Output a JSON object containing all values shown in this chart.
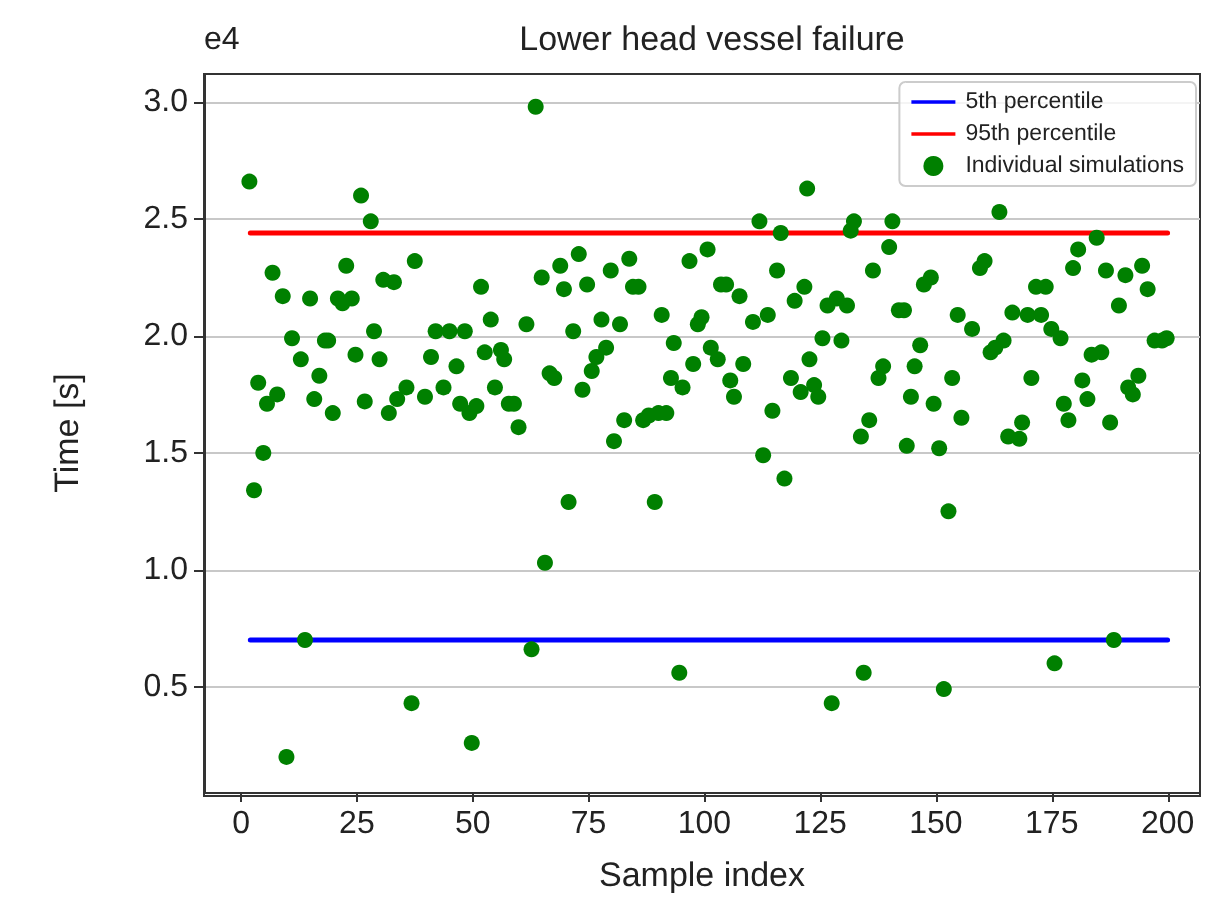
{
  "chart_data": {
    "type": "scatter",
    "title": "Lower head vessel failure",
    "xlabel": "Sample index",
    "ylabel": "Time [s]",
    "annotations": [
      "e4"
    ],
    "xlim": [
      -8,
      207
    ],
    "xticks": [
      0,
      25,
      50,
      75,
      100,
      125,
      150,
      175,
      200
    ],
    "ylim": [
      0.05,
      3.12
    ],
    "yticks": [
      0.5,
      {
        "value": 1,
        "label": "1.0"
      },
      1.5,
      {
        "value": 2,
        "label": "2.0"
      },
      2.5,
      {
        "value": 3,
        "label": "3.0"
      }
    ],
    "grid": "y",
    "legend": "top right",
    "series": [
      {
        "name": "5th percentile",
        "type": "line",
        "color": "#0000ff",
        "x": [
          2,
          200
        ],
        "values": [
          0.7,
          0.7
        ]
      },
      {
        "name": "95th percentile",
        "type": "line",
        "color": "#ff0000",
        "x": [
          2,
          200
        ],
        "values": [
          2.44,
          2.44
        ]
      },
      {
        "name": "Individual simulations",
        "marker": "circle",
        "color": "#008000",
        "x": [
          1.8,
          2.8,
          3.7,
          4.8,
          5.6,
          6.8,
          7.8,
          9.0,
          9.8,
          11.0,
          12.9,
          13.8,
          14.9,
          15.8,
          16.9,
          18.1,
          18.8,
          19.8,
          20.9,
          21.9,
          22.7,
          23.9,
          24.7,
          25.9,
          26.7,
          28.0,
          28.7,
          29.9,
          30.7,
          31.9,
          33.0,
          33.7,
          35.7,
          36.8,
          37.5,
          39.7,
          41.0,
          42.0,
          43.7,
          45.0,
          46.5,
          47.3,
          48.3,
          49.3,
          49.8,
          50.8,
          51.8,
          52.6,
          53.9,
          54.8,
          56.1,
          56.8,
          57.8,
          58.9,
          59.9,
          61.6,
          62.7,
          63.6,
          64.9,
          65.6,
          66.6,
          67.6,
          68.9,
          69.7,
          70.7,
          71.7,
          72.9,
          73.7,
          74.7,
          75.7,
          76.7,
          77.8,
          78.8,
          79.8,
          80.5,
          81.8,
          82.7,
          83.8,
          84.6,
          85.8,
          86.8,
          88.0,
          89.3,
          90.1,
          90.8,
          91.8,
          92.8,
          93.4,
          94.6,
          95.3,
          96.8,
          97.6,
          98.6,
          99.4,
          100.7,
          101.4,
          102.9,
          103.6,
          104.7,
          105.6,
          106.4,
          107.6,
          108.4,
          110.5,
          111.9,
          112.7,
          113.7,
          114.7,
          115.7,
          116.5,
          117.3,
          118.7,
          119.5,
          120.8,
          121.6,
          122.2,
          122.7,
          123.7,
          124.6,
          125.5,
          126.6,
          127.5,
          128.6,
          129.6,
          130.8,
          131.6,
          132.3,
          133.8,
          134.4,
          135.6,
          136.4,
          137.6,
          138.6,
          139.9,
          140.6,
          142.0,
          143.1,
          143.7,
          144.6,
          145.4,
          146.6,
          147.4,
          148.9,
          149.5,
          150.7,
          151.7,
          152.7,
          153.5,
          154.7,
          155.5,
          157.8,
          159.5,
          160.5,
          161.8,
          162.8,
          163.7,
          164.6,
          165.6,
          166.5,
          168.0,
          168.6,
          169.8,
          170.6,
          171.6,
          172.7,
          173.7,
          174.9,
          175.6,
          176.9,
          177.6,
          178.6,
          179.6,
          180.7,
          181.6,
          182.7,
          183.6,
          184.7,
          185.7,
          186.7,
          187.6,
          188.4,
          189.5,
          190.9,
          191.5,
          192.5,
          193.7,
          194.5,
          195.7,
          197.2,
          198.8,
          199.8
        ],
        "values": [
          2.66,
          1.34,
          1.8,
          1.5,
          1.71,
          2.27,
          1.75,
          2.17,
          0.2,
          1.99,
          1.9,
          0.7,
          2.16,
          1.73,
          1.83,
          1.98,
          1.98,
          1.67,
          2.16,
          2.14,
          2.3,
          2.16,
          1.92,
          2.6,
          1.72,
          2.49,
          2.02,
          1.9,
          2.24,
          1.67,
          2.23,
          1.73,
          1.78,
          0.43,
          2.32,
          1.74,
          1.91,
          2.02,
          1.78,
          2.02,
          1.87,
          1.71,
          2.02,
          1.67,
          0.26,
          1.7,
          2.21,
          1.93,
          2.07,
          1.78,
          1.94,
          1.9,
          1.71,
          1.71,
          1.61,
          2.05,
          0.66,
          2.98,
          2.25,
          1.03,
          1.84,
          1.82,
          2.3,
          2.2,
          1.29,
          2.02,
          2.35,
          1.77,
          2.22,
          1.85,
          1.91,
          2.07,
          1.95,
          2.28,
          1.55,
          2.05,
          1.64,
          2.33,
          2.21,
          2.21,
          1.64,
          1.66,
          1.29,
          1.67,
          2.09,
          1.67,
          1.82,
          1.97,
          0.56,
          1.78,
          2.32,
          1.88,
          2.05,
          2.08,
          2.37,
          1.95,
          1.9,
          2.22,
          2.22,
          1.81,
          1.74,
          2.17,
          1.88,
          2.06,
          2.49,
          1.49,
          2.09,
          1.68,
          2.28,
          2.44,
          1.39,
          1.82,
          2.15,
          1.76,
          2.21,
          2.63,
          1.9,
          1.79,
          1.74,
          1.99,
          2.13,
          0.43,
          2.16,
          1.98,
          2.13,
          2.45,
          2.49,
          1.57,
          0.56,
          1.64,
          2.28,
          1.82,
          1.87,
          2.38,
          2.49,
          2.11,
          2.11,
          1.53,
          1.74,
          1.87,
          1.96,
          2.22,
          2.25,
          1.71,
          1.52,
          0.49,
          1.25,
          1.82,
          2.09,
          1.65,
          2.03,
          2.29,
          2.32,
          1.93,
          1.95,
          2.53,
          1.98,
          1.57,
          2.1,
          1.56,
          1.63,
          2.09,
          1.82,
          2.21,
          2.09,
          2.21,
          2.03,
          0.6,
          1.99,
          1.71,
          1.64,
          2.29,
          2.37,
          1.81,
          1.73,
          1.92,
          2.42,
          1.93,
          2.28,
          1.63,
          0.7,
          2.13,
          2.26,
          1.78,
          1.75,
          1.83,
          2.3,
          2.2,
          1.98,
          1.98,
          1.99
        ]
      }
    ]
  }
}
